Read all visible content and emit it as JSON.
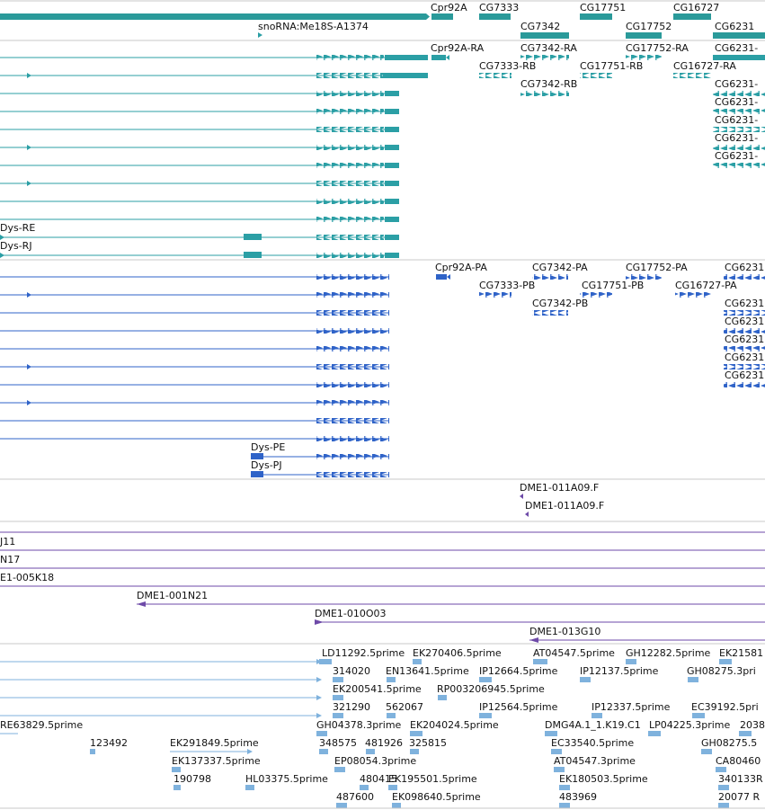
{
  "colors": {
    "gene": "#2a9a9a",
    "transcript": "#2b9fa5",
    "protein": "#2f63c8",
    "clone": "#6e4aa8",
    "est": "#7fb2dd",
    "divider": "#c8c8c8"
  },
  "genes": {
    "labels": [
      "Cpr92A",
      "CG7333",
      "CG17751",
      "CG16727",
      "CG7342",
      "CG17752",
      "CG6231"
    ],
    "sno_label": "snoRNA:Me18S-A1374"
  },
  "transcripts": {
    "labels": [
      "Cpr92A-RA",
      "CG7342-RA",
      "CG17752-RA",
      "CG6231-",
      "CG7333-RB",
      "CG17751-RB",
      "CG16727-RA",
      "CG7342-RB",
      "CG6231-",
      "CG6231-",
      "CG6231-",
      "CG6231-",
      "CG6231-",
      "Dys-RE",
      "Dys-RJ"
    ]
  },
  "proteins": {
    "labels": [
      "Cpr92A-PA",
      "CG7342-PA",
      "CG17752-PA",
      "CG6231",
      "CG7333-PB",
      "CG17751-PB",
      "CG16727-PA",
      "CG7342-PB",
      "CG6231",
      "CG6231",
      "CG6231",
      "CG6231",
      "CG6231",
      "Dys-PE",
      "Dys-PJ"
    ]
  },
  "ends": {
    "labels": [
      "DME1-011A09.F",
      "DME1-011A09.F"
    ]
  },
  "clones": {
    "labels": [
      "J11",
      "N17",
      "E1-005K18",
      "DME1-001N21",
      "DME1-010O03",
      "DME1-013G10"
    ]
  },
  "ests": {
    "labels": [
      "LD11292.5prime",
      "EK270406.5prime",
      "AT04547.5prime",
      "GH12282.5prime",
      "EK21581",
      "314020",
      "EN13641.5prime",
      "IP12664.5prime",
      "IP12137.5prime",
      "GH08275.3pri",
      "EK200541.5prime",
      "RP003206945.5prime",
      "321290",
      "562067",
      "IP12564.5prime",
      "IP12337.5prime",
      "EC39192.5pri",
      "RE63829.5prime",
      "GH04378.3prime",
      "EK204024.5prime",
      "DMG4A.1_1.K19.C1",
      "LP04225.3prime",
      "2038",
      "123492",
      "EK291849.5prime",
      "348575",
      "481926",
      "325815",
      "EC33540.5prime",
      "GH08275.5",
      "EK137337.5prime",
      "EP08054.3prime",
      "AT04547.3prime",
      "CA80460",
      "190798",
      "HL03375.5prime",
      "480415",
      "EK195501.5prime",
      "EK180503.5prime",
      "340133R",
      "487600",
      "EK098640.5prime",
      "483969",
      "20077 R"
    ]
  }
}
